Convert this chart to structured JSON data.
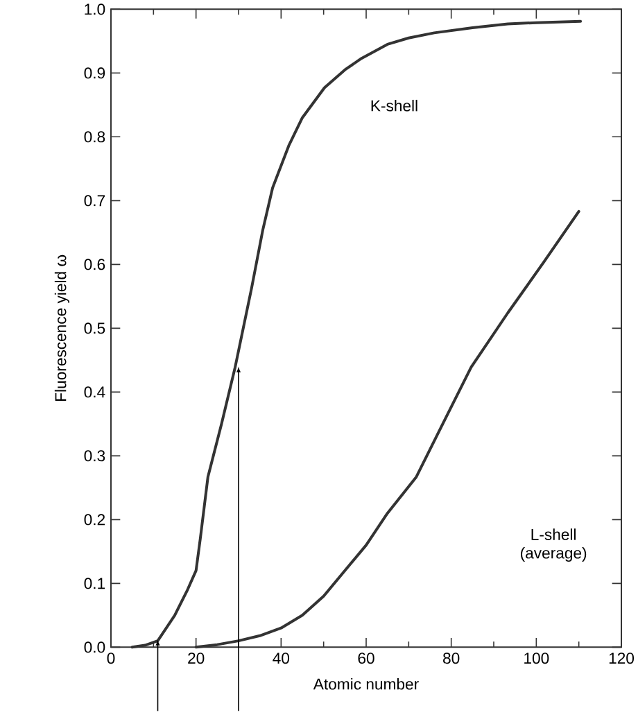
{
  "chart_data": {
    "type": "line",
    "xlabel": "Atomic number",
    "ylabel": "Fluorescence yield ω",
    "xlim": [
      0,
      120
    ],
    "xticks": [
      0,
      20,
      40,
      60,
      80,
      100,
      120
    ],
    "ylim": [
      0,
      1
    ],
    "yticks": [
      {
        "value": 0,
        "label": "0.0"
      },
      0.1,
      0.2,
      0.3,
      0.4,
      0.5,
      0.6,
      0.7,
      0.8,
      0.9,
      {
        "value": 1,
        "label": "1.0"
      }
    ],
    "grid": false,
    "marker": "none",
    "line_style": "solid",
    "series": [
      {
        "color": "#333333",
        "x": [
          5,
          8,
          11,
          15,
          18,
          20,
          21,
          22.8,
          26,
          29.2,
          33.1,
          35.7,
          38,
          41.8,
          45,
          50.2,
          55,
          58.9,
          65,
          70,
          76,
          85,
          93.3,
          100,
          110.4
        ],
        "values": [
          0,
          0.003,
          0.01,
          0.05,
          0.09,
          0.12,
          0.17,
          0.267,
          0.35,
          0.439,
          0.564,
          0.654,
          0.72,
          0.786,
          0.83,
          0.877,
          0.905,
          0.923,
          0.945,
          0.955,
          0.963,
          0.971,
          0.977,
          0.979,
          0.981
        ]
      },
      {
        "color": "#333333",
        "x": [
          20,
          25,
          30,
          35,
          40,
          45,
          50,
          55,
          60,
          65,
          71.8,
          78,
          84.7,
          93.3,
          101.8,
          110
        ],
        "values": [
          0,
          0.004,
          0.01,
          0.018,
          0.03,
          0.05,
          0.08,
          0.12,
          0.16,
          0.21,
          0.267,
          0.35,
          0.439,
          0.524,
          0.604,
          0.683
        ]
      }
    ],
    "annotations": [
      "K-shell",
      "L-shell (average)"
    ]
  }
}
